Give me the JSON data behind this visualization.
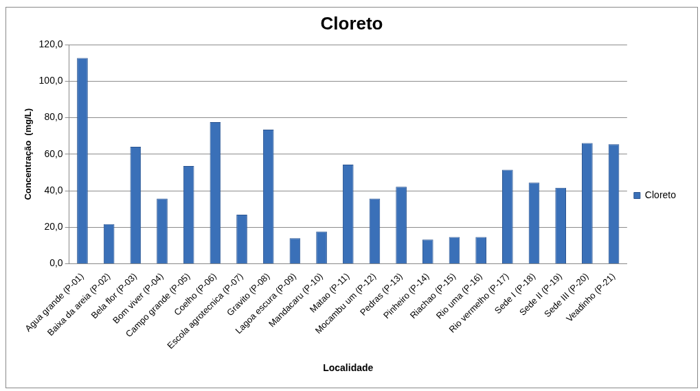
{
  "chart_data": {
    "type": "bar",
    "title": "Cloreto",
    "xlabel": "Localidade",
    "ylabel": "Concentração  (mg/L)",
    "categories": [
      "Agua grande (P-01)",
      "Baixa da areia (P-02)",
      "Bela flor (P-03)",
      "Bom viver (P-04)",
      "Campo grande (P-05)",
      "Coelho (P-06)",
      "Escola agrotecnica (P-07)",
      "Gravito (P-08)",
      "Lagoa escura (P-09)",
      "Mandacaru (P-10)",
      "Matao (P-11)",
      "Mocambu um (P-12)",
      "Pedras (P-13)",
      "Pinheiro (P-14)",
      "Riachao (P-15)",
      "Rio uma (P-16)",
      "Rio vermelho (P-17)",
      "Sede I (P-18)",
      "Sede II (P-19)",
      "Sede III (P-20)",
      "Veadinho (P-21)"
    ],
    "series": [
      {
        "name": "Cloreto",
        "color": "#3a70b8",
        "values": [
          112.7,
          21.7,
          64.1,
          35.7,
          53.5,
          77.6,
          26.8,
          73.5,
          14.0,
          17.6,
          54.3,
          35.7,
          42.2,
          13.2,
          14.6,
          14.6,
          51.5,
          44.4,
          41.6,
          66.1,
          65.5
        ]
      }
    ],
    "ylim": [
      0,
      120
    ],
    "yticks": [
      {
        "value": 0,
        "label": "0,0"
      },
      {
        "value": 20,
        "label": "20,0"
      },
      {
        "value": 40,
        "label": "40,0"
      },
      {
        "value": 60,
        "label": "60,0"
      },
      {
        "value": 80,
        "label": "80,0"
      },
      {
        "value": 100,
        "label": "100,0"
      },
      {
        "value": 120,
        "label": "120,0"
      }
    ],
    "grid": "y",
    "legend": "right"
  }
}
